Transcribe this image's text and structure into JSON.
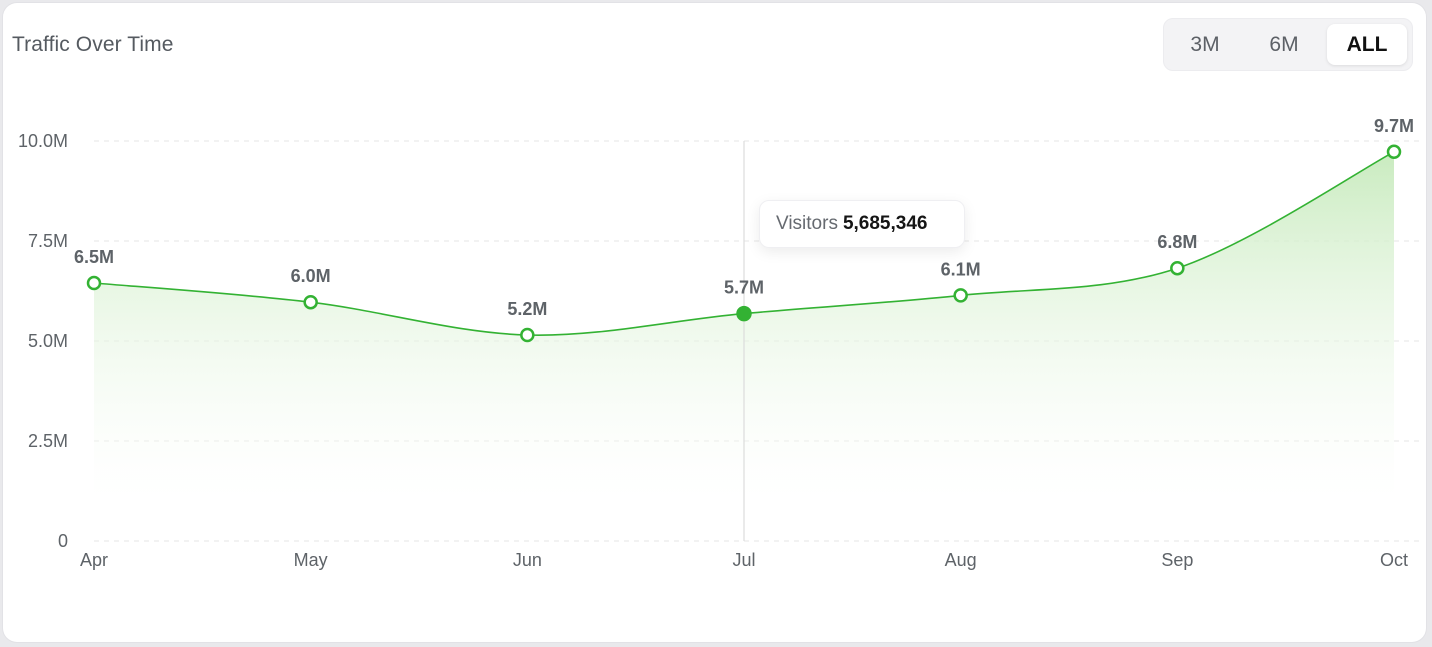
{
  "header": {
    "title": "Traffic Over Time"
  },
  "range_selector": {
    "options": [
      "3M",
      "6M",
      "ALL"
    ],
    "selected": "ALL"
  },
  "tooltip": {
    "label": "Visitors",
    "value": "5,685,346"
  },
  "colors": {
    "line": "#33b233",
    "area_top": "#c9ebbf",
    "grid": "#e6e6e6",
    "crosshair": "#dcdcdc"
  },
  "chart_data": {
    "type": "area",
    "title": "Traffic Over Time",
    "xlabel": "",
    "ylabel": "",
    "categories": [
      "Apr",
      "May",
      "Jun",
      "Jul",
      "Aug",
      "Sep",
      "Oct"
    ],
    "series": [
      {
        "values": [
          6450000,
          5970000,
          5150000,
          5685346,
          6140000,
          6820000,
          9730000
        ],
        "data_labels": [
          "6.5M",
          "6.0M",
          "5.2M",
          "5.7M",
          "6.1M",
          "6.8M",
          "9.7M"
        ]
      }
    ],
    "ylim": [
      0,
      10000000
    ],
    "y_ticks": [
      0,
      2500000,
      5000000,
      7500000,
      10000000
    ],
    "y_tick_labels": [
      "0",
      "2.5M",
      "5.0M",
      "7.5M",
      "10.0M"
    ],
    "grid": "horizontal-dashed",
    "highlighted_index": 3,
    "legend": "none"
  }
}
